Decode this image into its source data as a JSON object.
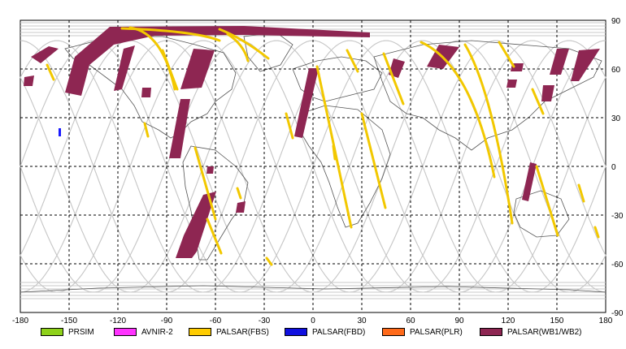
{
  "map": {
    "lon_ticks": [
      "-180",
      "-150",
      "-120",
      "-90",
      "-60",
      "-30",
      "0",
      "30",
      "60",
      "90",
      "120",
      "150",
      "180"
    ],
    "lat_ticks": [
      "90",
      "60",
      "30",
      "0",
      "-30",
      "-60",
      "-90"
    ],
    "grid": "dashed",
    "colors": {
      "land_outline": "#555555",
      "orbit_track": "#c8c8c8",
      "fbs": "#f2c800",
      "wb": "#8e2652",
      "fbd": "#1a1aff"
    }
  },
  "legend": [
    {
      "label": "PRSIM",
      "color": "#8ed11a"
    },
    {
      "label": "AVNIR-2",
      "color": "#ff33ff"
    },
    {
      "label": "PALSAR(FBS)",
      "color": "#ffcc00"
    },
    {
      "label": "PALSAR(FBD)",
      "color": "#1010e0"
    },
    {
      "label": "PALSAR(PLR)",
      "color": "#ff6a1a"
    },
    {
      "label": "PALSAR(WB1/WB2)",
      "color": "#8e2652"
    }
  ]
}
